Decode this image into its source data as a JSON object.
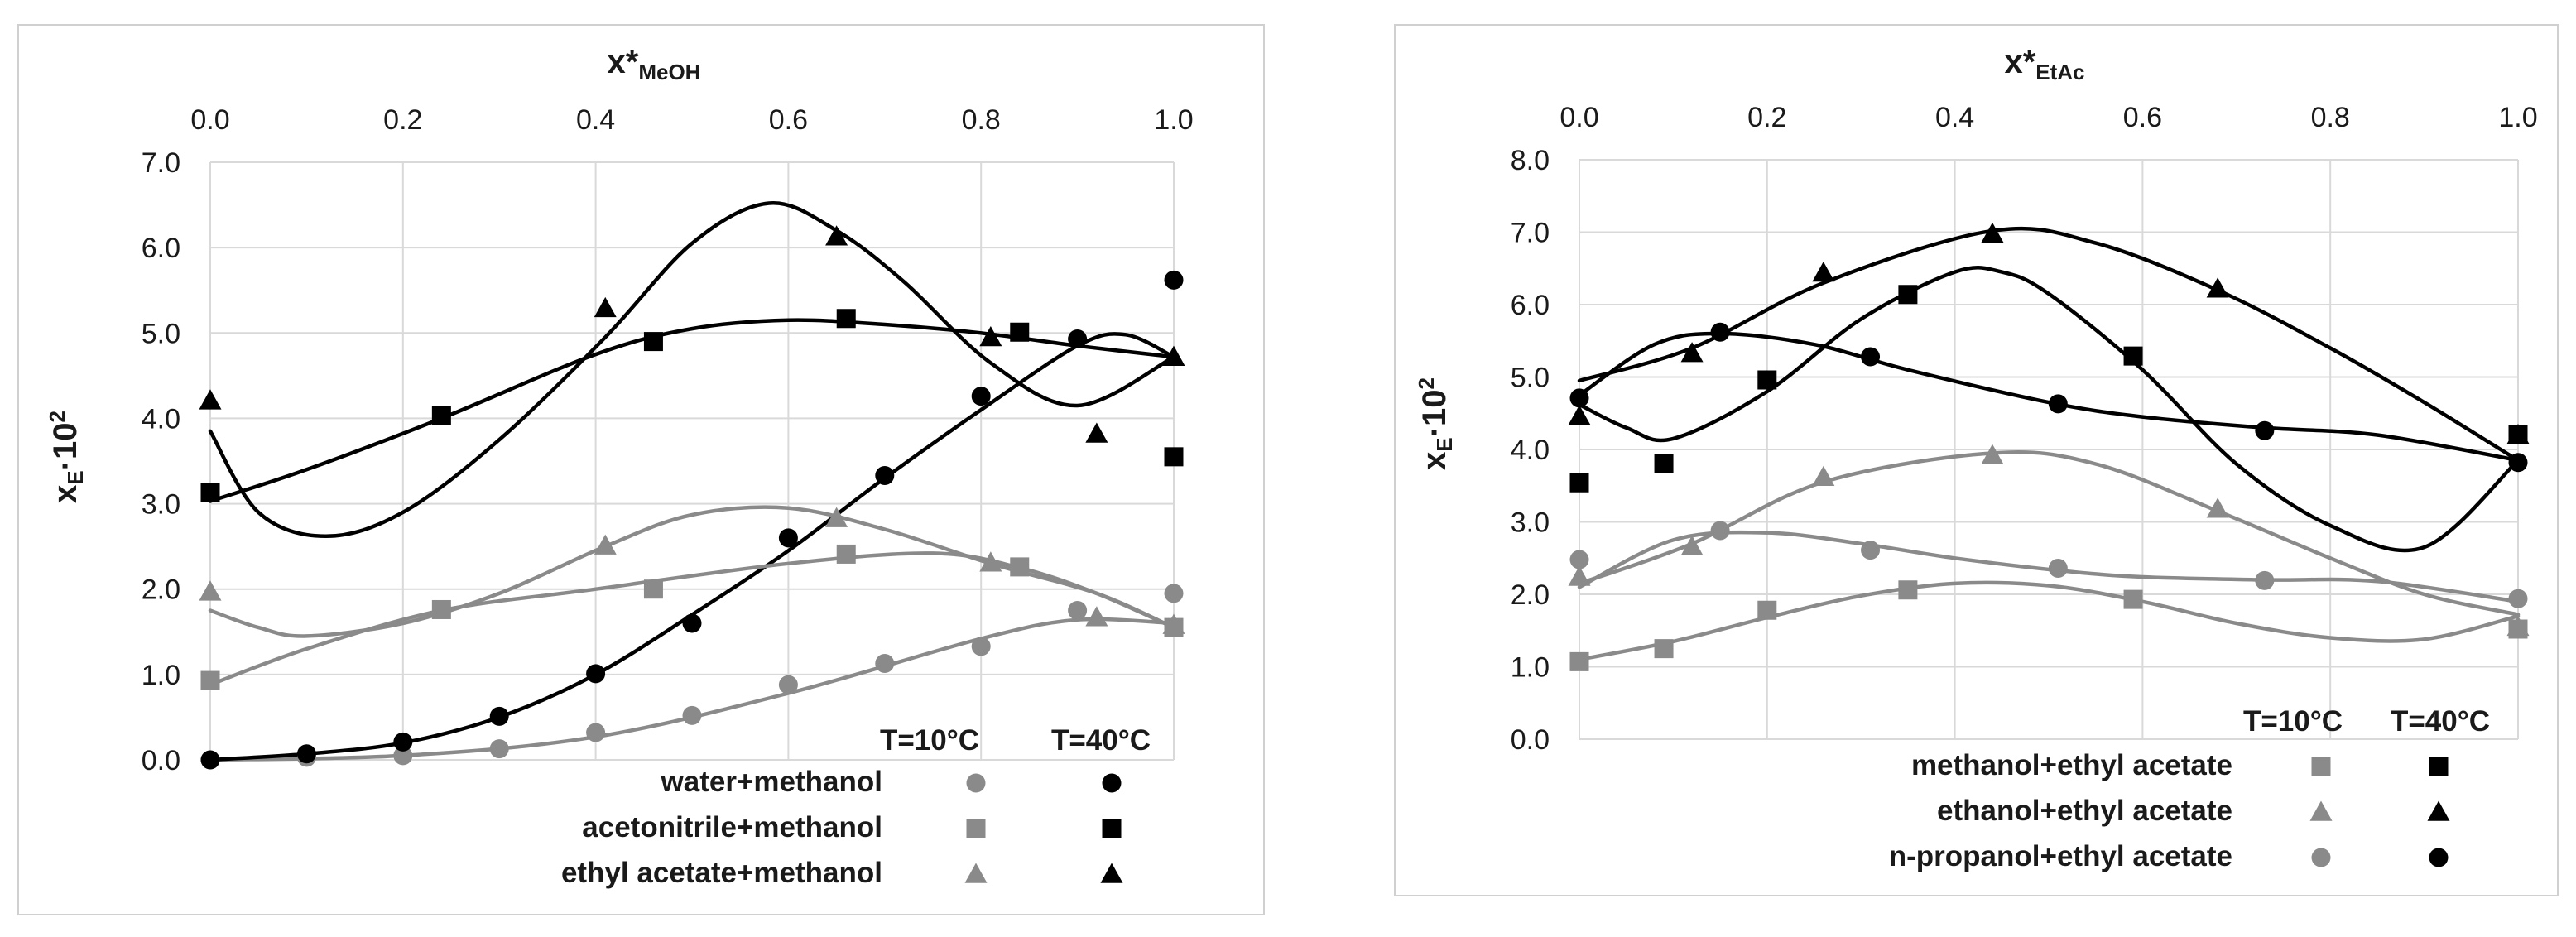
{
  "colors": {
    "black": "#000000",
    "gray": "#8a8a8a",
    "grid": "#d9d9d9"
  },
  "chart_data": [
    {
      "type": "scatter",
      "title": "",
      "xlabel_main": "x*",
      "xlabel_sub": "MeOH",
      "ylabel_main": "x",
      "ylabel_sub": "E",
      "ylabel_mid": "·10",
      "ylabel_sup": "2",
      "xlim": [
        0,
        1
      ],
      "ylim": [
        0,
        7
      ],
      "x_ticks": [
        0,
        0.2,
        0.4,
        0.6,
        0.8,
        1.0
      ],
      "y_ticks": [
        0,
        1,
        2,
        3,
        4,
        5,
        6,
        7
      ],
      "x_tick_labels": [
        "0.0",
        "0.2",
        "0.4",
        "0.6",
        "0.8",
        "1.0"
      ],
      "y_tick_labels": [
        "0.0",
        "1.0",
        "2.0",
        "3.0",
        "4.0",
        "5.0",
        "6.0",
        "7.0"
      ],
      "legend_header": [
        "T=10°C",
        "T=40°C"
      ],
      "legend": [
        {
          "label": "water+methanol",
          "marker": "circle"
        },
        {
          "label": "acetonitrile+methanol",
          "marker": "square"
        },
        {
          "label": "ethyl acetate+methanol",
          "marker": "triangle"
        }
      ],
      "series": [
        {
          "name": "water+methanol T=10°C",
          "marker": "circle",
          "color": "gray",
          "x": [
            0,
            0.1,
            0.2,
            0.3,
            0.4,
            0.5,
            0.6,
            0.7,
            0.8,
            0.9,
            1.0
          ],
          "y": [
            0,
            0.03,
            0.05,
            0.13,
            0.32,
            0.52,
            0.88,
            1.13,
            1.33,
            1.75,
            1.95
          ],
          "fit": [
            [
              0,
              0
            ],
            [
              0.2,
              0.05
            ],
            [
              0.4,
              0.27
            ],
            [
              0.6,
              0.78
            ],
            [
              0.8,
              1.42
            ],
            [
              0.9,
              1.64
            ],
            [
              1.0,
              1.6
            ]
          ]
        },
        {
          "name": "water+methanol T=40°C",
          "marker": "circle",
          "color": "black",
          "x": [
            0,
            0.1,
            0.2,
            0.3,
            0.4,
            0.5,
            0.6,
            0.7,
            0.8,
            0.9,
            1.0
          ],
          "y": [
            0,
            0.07,
            0.21,
            0.51,
            1.01,
            1.6,
            2.6,
            3.33,
            4.26,
            4.93,
            5.62
          ],
          "fit": [
            [
              0,
              0
            ],
            [
              0.1,
              0.07
            ],
            [
              0.2,
              0.2
            ],
            [
              0.3,
              0.5
            ],
            [
              0.4,
              1.0
            ],
            [
              0.5,
              1.7
            ],
            [
              0.6,
              2.45
            ],
            [
              0.7,
              3.3
            ],
            [
              0.8,
              4.1
            ],
            [
              0.9,
              4.85
            ],
            [
              0.95,
              4.98
            ],
            [
              1.0,
              4.72
            ]
          ]
        },
        {
          "name": "acetonitrile+methanol T=10°C",
          "marker": "square",
          "color": "gray",
          "x": [
            0,
            0.24,
            0.46,
            0.66,
            0.84,
            1.0
          ],
          "y": [
            0.93,
            1.76,
            2.0,
            2.41,
            2.26,
            1.55
          ],
          "fit": [
            [
              0,
              0.88
            ],
            [
              0.1,
              1.3
            ],
            [
              0.24,
              1.75
            ],
            [
              0.4,
              2.0
            ],
            [
              0.6,
              2.3
            ],
            [
              0.75,
              2.42
            ],
            [
              0.84,
              2.25
            ],
            [
              0.92,
              1.95
            ],
            [
              1.0,
              1.55
            ]
          ]
        },
        {
          "name": "acetonitrile+methanol T=40°C",
          "marker": "square",
          "color": "black",
          "x": [
            0,
            0.24,
            0.46,
            0.66,
            0.84,
            1.0
          ],
          "y": [
            3.13,
            4.03,
            4.9,
            5.17,
            5.01,
            3.55
          ],
          "fit": [
            [
              0,
              3.03
            ],
            [
              0.1,
              3.4
            ],
            [
              0.24,
              4.0
            ],
            [
              0.4,
              4.75
            ],
            [
              0.5,
              5.05
            ],
            [
              0.6,
              5.15
            ],
            [
              0.7,
              5.1
            ],
            [
              0.8,
              5.0
            ],
            [
              0.9,
              4.85
            ],
            [
              1.0,
              4.72
            ]
          ]
        },
        {
          "name": "ethyl acetate+methanol T=10°C",
          "marker": "triangle",
          "color": "gray",
          "x": [
            0,
            0.41,
            0.65,
            0.81,
            0.92,
            1.0
          ],
          "y": [
            1.97,
            2.51,
            2.83,
            2.31,
            1.67,
            1.58
          ],
          "fit": [
            [
              0,
              1.75
            ],
            [
              0.05,
              1.55
            ],
            [
              0.1,
              1.45
            ],
            [
              0.2,
              1.6
            ],
            [
              0.3,
              1.95
            ],
            [
              0.41,
              2.5
            ],
            [
              0.5,
              2.87
            ],
            [
              0.6,
              2.95
            ],
            [
              0.7,
              2.7
            ],
            [
              0.81,
              2.3
            ],
            [
              0.92,
              1.95
            ],
            [
              1.0,
              1.55
            ]
          ]
        },
        {
          "name": "ethyl acetate+methanol T=40°C",
          "marker": "triangle",
          "color": "black",
          "x": [
            0,
            0.41,
            0.65,
            0.81,
            0.92,
            1.0
          ],
          "y": [
            4.21,
            5.29,
            6.13,
            4.95,
            3.82,
            4.72
          ],
          "fit": [
            [
              0,
              3.85
            ],
            [
              0.05,
              2.9
            ],
            [
              0.12,
              2.62
            ],
            [
              0.2,
              2.9
            ],
            [
              0.3,
              3.75
            ],
            [
              0.41,
              4.95
            ],
            [
              0.5,
              6.05
            ],
            [
              0.58,
              6.52
            ],
            [
              0.65,
              6.2
            ],
            [
              0.72,
              5.6
            ],
            [
              0.81,
              4.65
            ],
            [
              0.9,
              4.15
            ],
            [
              1.0,
              4.72
            ]
          ]
        }
      ]
    },
    {
      "type": "scatter",
      "title": "",
      "xlabel_main": "x*",
      "xlabel_sub": "EtAc",
      "ylabel_main": "x",
      "ylabel_sub": "E",
      "ylabel_mid": "·10",
      "ylabel_sup": "2",
      "xlim": [
        0,
        1
      ],
      "ylim": [
        0,
        8
      ],
      "x_ticks": [
        0,
        0.2,
        0.4,
        0.6,
        0.8,
        1.0
      ],
      "y_ticks": [
        0,
        1,
        2,
        3,
        4,
        5,
        6,
        7,
        8
      ],
      "x_tick_labels": [
        "0.0",
        "0.2",
        "0.4",
        "0.6",
        "0.8",
        "1.0"
      ],
      "y_tick_labels": [
        "0.0",
        "1.0",
        "2.0",
        "3.0",
        "4.0",
        "5.0",
        "6.0",
        "7.0",
        "8.0"
      ],
      "legend_header": [
        "T=10°C",
        "T=40°C"
      ],
      "legend": [
        {
          "label": "methanol+ethyl acetate",
          "marker": "square"
        },
        {
          "label": "ethanol+ethyl acetate",
          "marker": "triangle"
        },
        {
          "label": "n-propanol+ethyl acetate",
          "marker": "circle"
        }
      ],
      "series": [
        {
          "name": "methanol+ethyl acetate T=10°C",
          "marker": "square",
          "color": "gray",
          "x": [
            0,
            0.09,
            0.2,
            0.35,
            0.59,
            1.0
          ],
          "y": [
            1.07,
            1.25,
            1.78,
            2.06,
            1.93,
            1.52
          ],
          "fit": [
            [
              0,
              1.1
            ],
            [
              0.1,
              1.35
            ],
            [
              0.2,
              1.68
            ],
            [
              0.3,
              1.98
            ],
            [
              0.4,
              2.15
            ],
            [
              0.5,
              2.12
            ],
            [
              0.6,
              1.9
            ],
            [
              0.7,
              1.6
            ],
            [
              0.8,
              1.4
            ],
            [
              0.9,
              1.38
            ],
            [
              1.0,
              1.7
            ]
          ]
        },
        {
          "name": "methanol+ethyl acetate T=40°C",
          "marker": "square",
          "color": "black",
          "x": [
            0,
            0.09,
            0.2,
            0.35,
            0.59,
            1.0
          ],
          "y": [
            3.54,
            3.81,
            4.96,
            6.14,
            5.29,
            4.2
          ],
          "fit": [
            [
              0,
              4.62
            ],
            [
              0.05,
              4.3
            ],
            [
              0.1,
              4.15
            ],
            [
              0.2,
              4.8
            ],
            [
              0.3,
              5.8
            ],
            [
              0.4,
              6.45
            ],
            [
              0.45,
              6.45
            ],
            [
              0.5,
              6.15
            ],
            [
              0.6,
              5.1
            ],
            [
              0.7,
              3.8
            ],
            [
              0.8,
              2.95
            ],
            [
              0.9,
              2.65
            ],
            [
              1.0,
              3.85
            ]
          ]
        },
        {
          "name": "ethanol+ethyl acetate T=10°C",
          "marker": "triangle",
          "color": "gray",
          "x": [
            0,
            0.12,
            0.26,
            0.44,
            0.68,
            1.0
          ],
          "y": [
            2.24,
            2.66,
            3.62,
            3.92,
            3.18,
            1.55
          ],
          "fit": [
            [
              0,
              2.15
            ],
            [
              0.12,
              2.7
            ],
            [
              0.26,
              3.55
            ],
            [
              0.44,
              3.95
            ],
            [
              0.55,
              3.8
            ],
            [
              0.68,
              3.15
            ],
            [
              0.8,
              2.5
            ],
            [
              0.9,
              2.0
            ],
            [
              1.0,
              1.72
            ]
          ]
        },
        {
          "name": "ethanol+ethyl acetate T=40°C",
          "marker": "triangle",
          "color": "black",
          "x": [
            0,
            0.12,
            0.26,
            0.44,
            0.68,
            1.0
          ],
          "y": [
            4.46,
            5.33,
            6.44,
            6.98,
            6.22,
            4.2
          ],
          "fit": [
            [
              0,
              4.95
            ],
            [
              0.12,
              5.4
            ],
            [
              0.26,
              6.3
            ],
            [
              0.44,
              7.02
            ],
            [
              0.55,
              6.85
            ],
            [
              0.68,
              6.2
            ],
            [
              0.8,
              5.4
            ],
            [
              0.9,
              4.65
            ],
            [
              1.0,
              3.85
            ]
          ]
        },
        {
          "name": "n-propanol+ethyl acetate T=10°C",
          "marker": "circle",
          "color": "gray",
          "x": [
            0,
            0.15,
            0.31,
            0.51,
            0.73,
            1.0
          ],
          "y": [
            2.48,
            2.88,
            2.61,
            2.36,
            2.19,
            1.94
          ],
          "fit": [
            [
              0,
              2.1
            ],
            [
              0.1,
              2.75
            ],
            [
              0.2,
              2.85
            ],
            [
              0.3,
              2.7
            ],
            [
              0.4,
              2.5
            ],
            [
              0.51,
              2.33
            ],
            [
              0.6,
              2.24
            ],
            [
              0.73,
              2.2
            ],
            [
              0.85,
              2.18
            ],
            [
              1.0,
              1.9
            ]
          ]
        },
        {
          "name": "n-propanol+ethyl acetate T=40°C",
          "marker": "circle",
          "color": "black",
          "x": [
            0,
            0.15,
            0.31,
            0.51,
            0.73,
            1.0
          ],
          "y": [
            4.71,
            5.62,
            5.28,
            4.63,
            4.26,
            3.82
          ],
          "fit": [
            [
              0,
              4.75
            ],
            [
              0.08,
              5.45
            ],
            [
              0.15,
              5.6
            ],
            [
              0.25,
              5.45
            ],
            [
              0.35,
              5.1
            ],
            [
              0.5,
              4.65
            ],
            [
              0.6,
              4.45
            ],
            [
              0.73,
              4.3
            ],
            [
              0.85,
              4.2
            ],
            [
              1.0,
              3.85
            ]
          ]
        }
      ]
    }
  ]
}
